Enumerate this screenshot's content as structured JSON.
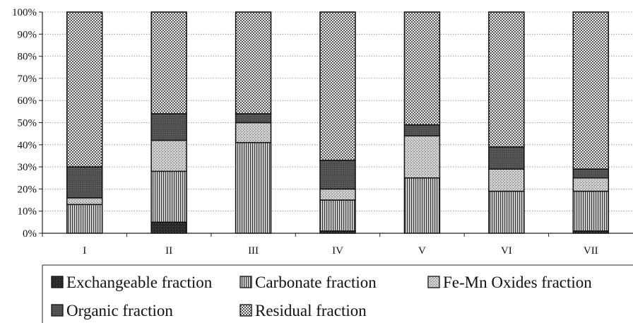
{
  "chart_data": {
    "type": "stacked-bar",
    "categories": [
      "I",
      "II",
      "III",
      "IV",
      "V",
      "VI",
      "VII"
    ],
    "ylim": [
      0,
      100
    ],
    "yticks": [
      "0%",
      "10%",
      "20%",
      "30%",
      "40%",
      "50%",
      "60%",
      "70%",
      "80%",
      "90%",
      "100%"
    ],
    "grid": "horizontal-dotted",
    "legend_position": "bottom",
    "series": [
      {
        "name": "Exchangeable fraction",
        "pattern": "dark",
        "values": [
          0,
          5,
          0,
          1,
          0,
          0,
          1
        ]
      },
      {
        "name": "Carbonate fraction",
        "pattern": "vertical-lines",
        "values": [
          13,
          23,
          41,
          14,
          25,
          19,
          18
        ]
      },
      {
        "name": "Fe-Mn Oxides fraction",
        "pattern": "speckled",
        "values": [
          3,
          14,
          9,
          5,
          19,
          10,
          6
        ]
      },
      {
        "name": "Organic fraction",
        "pattern": "medium-dark",
        "values": [
          14,
          12,
          4,
          13,
          5,
          10,
          4
        ]
      },
      {
        "name": "Residual fraction",
        "pattern": "checker",
        "values": [
          70,
          46,
          46,
          67,
          51,
          61,
          71
        ]
      }
    ]
  }
}
